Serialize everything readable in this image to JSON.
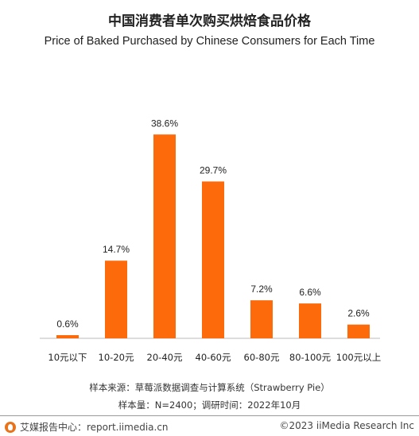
{
  "chart_data": {
    "type": "bar",
    "title": "中国消费者单次购买烘焙食品价格",
    "subtitle": "Price of Baked Purchased by Chinese Consumers for Each Time",
    "categories": [
      "10元以下",
      "10-20元",
      "20-40元",
      "40-60元",
      "60-80元",
      "80-100元",
      "100元以上"
    ],
    "values": [
      0.6,
      14.7,
      38.6,
      29.7,
      7.2,
      6.6,
      2.6
    ],
    "data_labels": [
      "0.6%",
      "14.7%",
      "38.6%",
      "29.7%",
      "7.2%",
      "6.6%",
      "2.6%"
    ],
    "unit": "%",
    "ylim": [
      0,
      40
    ],
    "grid": false,
    "bar_color": "#fc6a0b"
  },
  "source": {
    "line1": "样本来源：草莓派数据调查与计算系统（Strawberry Pie）",
    "line2": "样本量：N=2400；调研时间：2022年10月"
  },
  "footer": {
    "left": "艾媒报告中心：report.iimedia.cn",
    "right": "©2023  iiMedia Research  Inc",
    "logo_icon": "iimedia-logo-icon"
  }
}
